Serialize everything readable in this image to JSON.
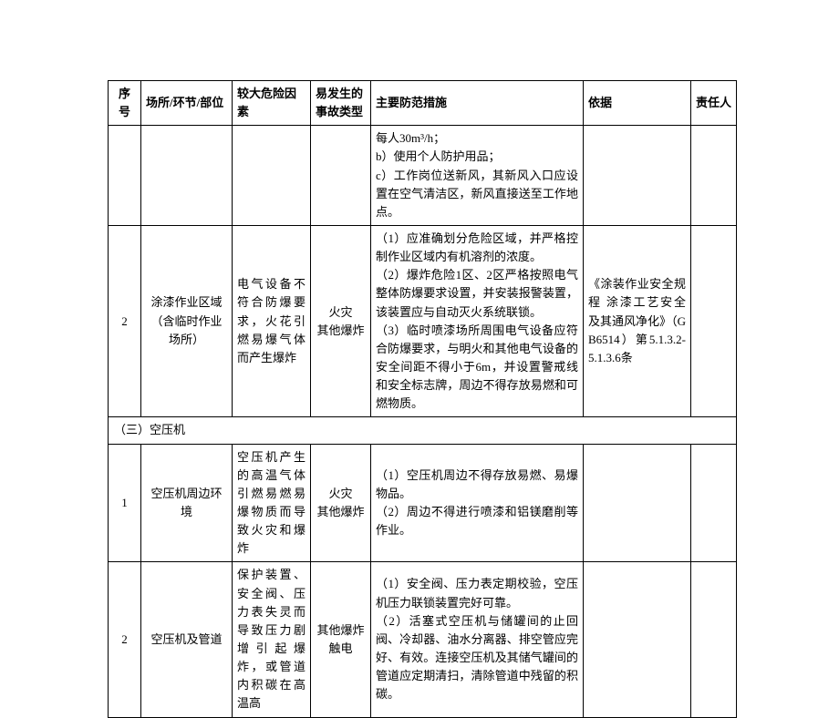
{
  "table": {
    "font_size_pt": 10,
    "border_color": "#000000",
    "background_color": "#ffffff",
    "text_color": "#000000",
    "columns": [
      {
        "key": "seq",
        "label": "序号"
      },
      {
        "key": "place",
        "label": "场所/环节/部位"
      },
      {
        "key": "risk",
        "label": "较大危险因素"
      },
      {
        "key": "accident",
        "label": "易发生的事故类型"
      },
      {
        "key": "measures",
        "label": "主要防范措施"
      },
      {
        "key": "basis",
        "label": "依据"
      },
      {
        "key": "responsible",
        "label": "责任人"
      }
    ],
    "rows": [
      {
        "seq": "",
        "place": "",
        "risk": "",
        "accident": "",
        "measures": "每人30m³/h；\nb）使用个人防护用品；\nc）工作岗位送新风，其新风入口应设置在空气清洁区，新风直接送至工作地点。",
        "basis": "",
        "responsible": ""
      },
      {
        "seq": "2",
        "place": "涂漆作业区域（含临时作业场所）",
        "risk": "电气设备不符合防爆要求，火花引燃易爆气体而产生爆炸",
        "accident": "火灾\n其他爆炸",
        "measures": "（1）应准确划分危险区域，并严格控制作业区域内有机溶剂的浓度。\n（2）爆炸危险1区、2区严格按照电气整体防爆要求设置，并安装报警装置，该装置应与自动灭火系统联锁。\n（3）临时喷漆场所周围电气设备应符合防爆要求，与明火和其他电气设备的安全间距不得小于6m，并设置警戒线和安全标志牌，周边不得存放易燃和可燃物质。",
        "basis": "《涂装作业安全规程 涂漆工艺安全及其通风净化》（GB6514）第5.1.3.2-5.1.3.6条",
        "responsible": ""
      },
      {
        "section": "（三）空压机"
      },
      {
        "seq": "1",
        "place": "空压机周边环境",
        "risk": "空压机产生的高温气体引燃易燃易爆物质而导致火灾和爆炸",
        "accident": "火灾\n其他爆炸",
        "measures": "（1）空压机周边不得存放易燃、易爆物品。\n（2）周边不得进行喷漆和铝镁磨削等作业。",
        "basis": "",
        "responsible": ""
      },
      {
        "seq": "2",
        "place": "空压机及管道",
        "risk": "保护装置、安全阀、压力表失灵而导致压力剧增引起爆炸，或管道内积碳在高温高",
        "accident": "其他爆炸\n触电",
        "measures": "（1）安全阀、压力表定期校验，空压机压力联锁装置完好可靠。\n（2）活塞式空压机与储罐间的止回阀、冷却器、油水分离器、排空管应完好、有效。连接空压机及其储气罐间的管道应定期清扫，清除管道中残留的积碳。",
        "basis": "",
        "responsible": ""
      }
    ]
  }
}
